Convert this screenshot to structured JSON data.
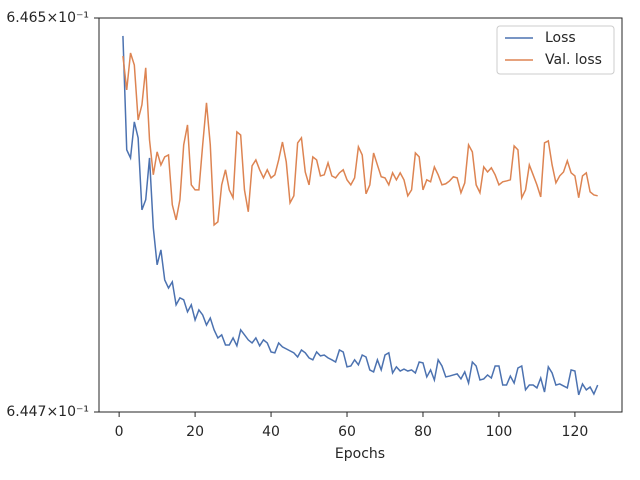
{
  "chart_data": {
    "type": "line",
    "xlabel": "Epochs",
    "x": [
      1,
      2,
      3,
      4,
      5,
      6,
      7,
      8,
      9,
      10,
      11,
      12,
      13,
      14,
      15,
      16,
      17,
      18,
      19,
      20,
      21,
      22,
      23,
      24,
      25,
      26,
      27,
      28,
      29,
      30,
      31,
      32,
      33,
      34,
      35,
      36,
      37,
      38,
      39,
      40,
      41,
      42,
      43,
      44,
      45,
      46,
      47,
      48,
      49,
      50,
      51,
      52,
      53,
      54,
      55,
      56,
      57,
      58,
      59,
      60,
      61,
      62,
      63,
      64,
      65,
      66,
      67,
      68,
      69,
      70,
      71,
      72,
      73,
      74,
      75,
      76,
      77,
      78,
      79,
      80,
      81,
      82,
      83,
      84,
      85,
      86,
      87,
      88,
      89,
      90,
      91,
      92,
      93,
      94,
      95,
      96,
      97,
      98,
      99,
      100,
      101,
      102,
      103,
      104,
      105,
      106,
      107,
      108,
      109,
      110,
      111,
      112,
      113,
      114,
      115,
      116,
      117,
      118,
      119,
      120,
      121,
      122,
      123,
      124,
      125,
      126
    ],
    "series": [
      {
        "name": "Loss",
        "color": "#4c72b0",
        "values": [
          0.646418,
          0.645897,
          0.64586,
          0.646025,
          0.645952,
          0.645623,
          0.645669,
          0.64586,
          0.645541,
          0.645372,
          0.64544,
          0.645303,
          0.645266,
          0.645294,
          0.645189,
          0.645221,
          0.645212,
          0.645157,
          0.645189,
          0.64512,
          0.645166,
          0.645143,
          0.645097,
          0.645129,
          0.645075,
          0.645038,
          0.645052,
          0.645006,
          0.645006,
          0.645038,
          0.645002,
          0.645075,
          0.645052,
          0.645029,
          0.645015,
          0.645038,
          0.645002,
          0.645029,
          0.645015,
          0.644974,
          0.64497,
          0.645015,
          0.644997,
          0.644988,
          0.644979,
          0.64497,
          0.644951,
          0.644983,
          0.64497,
          0.644947,
          0.644938,
          0.644974,
          0.644956,
          0.64496,
          0.644947,
          0.644938,
          0.644928,
          0.644983,
          0.644974,
          0.644906,
          0.64491,
          0.644938,
          0.644915,
          0.64496,
          0.644951,
          0.644892,
          0.644883,
          0.644938,
          0.644892,
          0.64496,
          0.64497,
          0.644878,
          0.644906,
          0.644887,
          0.644896,
          0.644887,
          0.644892,
          0.644878,
          0.644928,
          0.644924,
          0.64486,
          0.644892,
          0.644846,
          0.644938,
          0.64491,
          0.64486,
          0.644864,
          0.644869,
          0.644874,
          0.644851,
          0.644883,
          0.644832,
          0.644928,
          0.64491,
          0.644846,
          0.644851,
          0.644869,
          0.644855,
          0.64491,
          0.64491,
          0.644823,
          0.644823,
          0.644864,
          0.644832,
          0.644901,
          0.64491,
          0.644801,
          0.644823,
          0.644823,
          0.64481,
          0.644855,
          0.644791,
          0.644906,
          0.644878,
          0.644823,
          0.644828,
          0.644819,
          0.64481,
          0.644892,
          0.644887,
          0.644778,
          0.644828,
          0.644801,
          0.644814,
          0.644782,
          0.644823
        ]
      },
      {
        "name": "Val. loss",
        "color": "#dd8452",
        "values": [
          0.646326,
          0.646171,
          0.64634,
          0.646285,
          0.646034,
          0.646103,
          0.646272,
          0.645943,
          0.645783,
          0.645888,
          0.645828,
          0.645865,
          0.645874,
          0.645646,
          0.645577,
          0.645669,
          0.64592,
          0.646011,
          0.645737,
          0.645714,
          0.645714,
          0.64592,
          0.646112,
          0.64592,
          0.645554,
          0.645568,
          0.645737,
          0.645806,
          0.645714,
          0.645678,
          0.645979,
          0.645965,
          0.645714,
          0.645614,
          0.645824,
          0.645851,
          0.645806,
          0.645769,
          0.645806,
          0.645769,
          0.645783,
          0.645851,
          0.645933,
          0.645842,
          0.645655,
          0.645687,
          0.645929,
          0.645952,
          0.645796,
          0.645737,
          0.645865,
          0.645851,
          0.645778,
          0.645783,
          0.645838,
          0.645778,
          0.645769,
          0.645792,
          0.645806,
          0.64576,
          0.645737,
          0.645769,
          0.645911,
          0.645874,
          0.645696,
          0.645737,
          0.645883,
          0.645828,
          0.645774,
          0.645769,
          0.645737,
          0.645792,
          0.64576,
          0.645792,
          0.64576,
          0.645687,
          0.645714,
          0.645883,
          0.645865,
          0.645714,
          0.64576,
          0.645751,
          0.645819,
          0.645783,
          0.645737,
          0.645742,
          0.645755,
          0.645774,
          0.645769,
          0.645701,
          0.645746,
          0.64592,
          0.645888,
          0.645737,
          0.645701,
          0.645819,
          0.645796,
          0.645815,
          0.645783,
          0.645737,
          0.645751,
          0.645755,
          0.64576,
          0.645915,
          0.645897,
          0.645678,
          0.645714,
          0.645828,
          0.645783,
          0.645737,
          0.645682,
          0.645929,
          0.645938,
          0.645828,
          0.645746,
          0.645778,
          0.645796,
          0.645847,
          0.645792,
          0.645778,
          0.645678,
          0.645778,
          0.645792,
          0.645705,
          0.645691,
          0.645687
        ]
      }
    ],
    "xlim": [
      -5.3,
      132.4
    ],
    "xticks": [
      0,
      20,
      40,
      60,
      80,
      100,
      120
    ],
    "ylim": [
      0.6447,
      0.6465
    ],
    "yticks": [
      {
        "value": 0.6447,
        "label": "6.447×10⁻¹"
      },
      {
        "value": 0.6465,
        "label": "6.465×10⁻¹"
      }
    ],
    "log_y": true,
    "legend": "upper right"
  }
}
